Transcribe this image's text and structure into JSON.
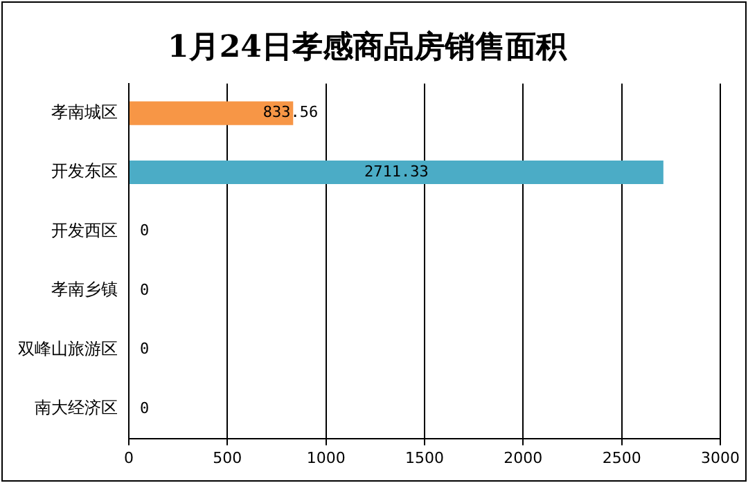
{
  "chart_data": {
    "type": "bar",
    "orientation": "horizontal",
    "title": "1月24日孝感商品房销售面积",
    "categories": [
      "孝南城区",
      "开发东区",
      "开发西区",
      "孝南乡镇",
      "双峰山旅游区",
      "南大经济区"
    ],
    "values": [
      833.56,
      2711.33,
      0,
      0,
      0,
      0
    ],
    "colors": [
      "#f79646",
      "#4bacc6",
      "#4bacc6",
      "#4bacc6",
      "#4bacc6",
      "#4bacc6"
    ],
    "xlim": [
      0,
      3000
    ],
    "xticks": [
      0,
      500,
      1000,
      1500,
      2000,
      2500,
      3000
    ],
    "grid": "x",
    "data_labels": true,
    "legend": false
  }
}
